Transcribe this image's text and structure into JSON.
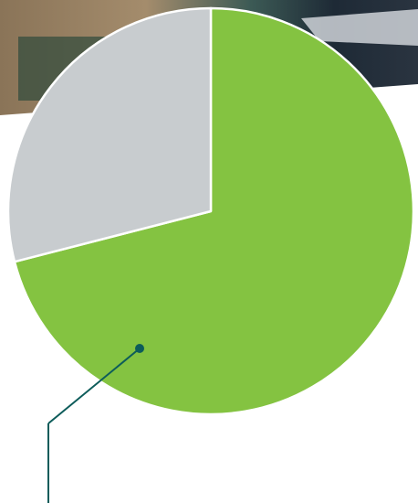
{
  "chart_data": {
    "type": "pie",
    "values": [
      71,
      29
    ],
    "colors": [
      "#84c341",
      "#c8cccf"
    ],
    "start_angle": 0,
    "direction": "clockwise"
  }
}
